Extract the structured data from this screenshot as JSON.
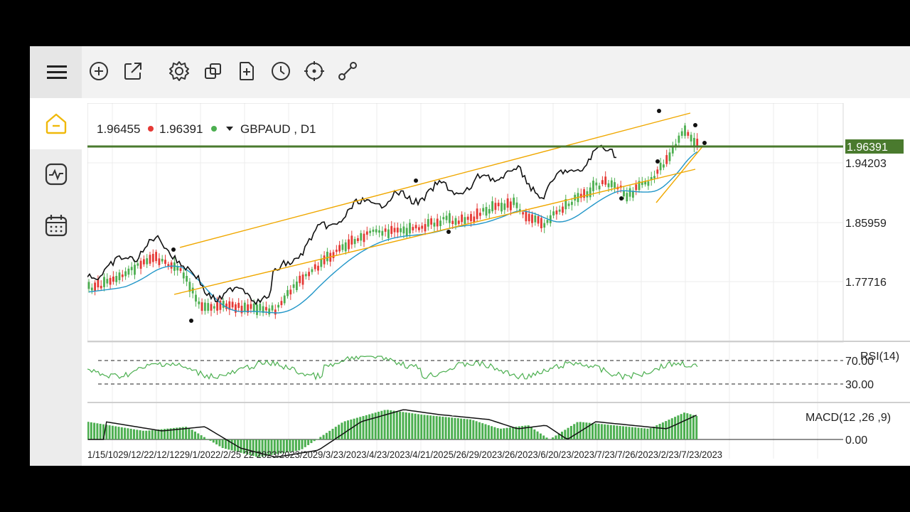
{
  "toolbar": {
    "icons": [
      "menu-icon",
      "add-circle-icon",
      "share-icon",
      "settings-icon",
      "copy-icon",
      "add-page-icon",
      "clock-icon",
      "crosshair-icon",
      "draw-line-icon"
    ]
  },
  "sidebar": {
    "items": [
      "home-icon",
      "indicator-icon",
      "calendar-icon"
    ],
    "active_color": "#f0b90b"
  },
  "chart": {
    "bid": "1.96455",
    "ask": "1.96391",
    "symbol": "GBPAUD , D1",
    "current_price_label": "1.96391",
    "y_ticks": [
      "1.94203",
      "1.85959",
      "1.77716"
    ],
    "rsi_label": "RSI(14)",
    "rsi_levels": [
      "70.00",
      "30.00"
    ],
    "macd_label": "MACD(12 ,26 ,9)",
    "macd_zero": "0.00",
    "x_ticks_text": "1/15/1029/12/22/12/1229/1/2022/2/25 22 2023/2023/2029/3/23/2023/4/23/2023/4/21/2025/26/29/2023/26/2023/6/20/23/2023/7/23/7/26/2023/2/23/7/23/2023",
    "colors": {
      "bull": "#4caf50",
      "bear": "#e53935",
      "ma_blue": "#2196c8",
      "channel": "#f0a800",
      "price_line": "#4a7a2e",
      "rsi": "#4caf50",
      "macd_hist": "#4caf50"
    }
  }
}
